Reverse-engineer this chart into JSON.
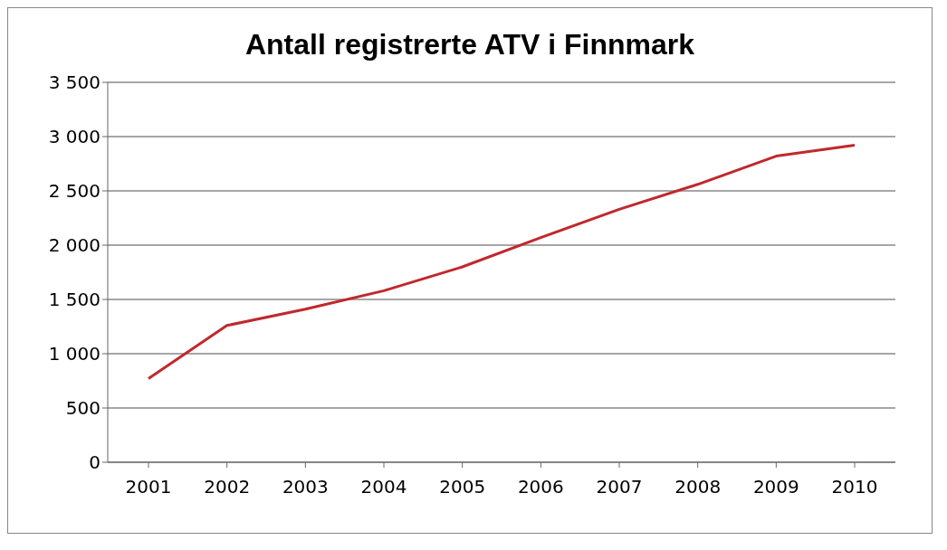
{
  "chart_data": {
    "type": "line",
    "title": "Antall registrerte ATV i Finnmark",
    "categories": [
      "2001",
      "2002",
      "2003",
      "2004",
      "2005",
      "2006",
      "2007",
      "2008",
      "2009",
      "2010"
    ],
    "series": [
      {
        "color": "#c0282d",
        "values": [
          770,
          1260,
          1410,
          1580,
          1800,
          2070,
          2330,
          2560,
          2820,
          2920
        ]
      }
    ],
    "ylim": [
      0,
      3500
    ],
    "yticks": [
      0,
      500,
      {
        "value": 1000,
        "label": "1 000"
      },
      {
        "value": 1500,
        "label": "1 500"
      },
      {
        "value": 2000,
        "label": "2 000"
      },
      {
        "value": 2500,
        "label": "2 500"
      },
      {
        "value": 3000,
        "label": "3 000"
      },
      {
        "value": 3500,
        "label": "3 500"
      }
    ],
    "grid": "y",
    "legend": false,
    "marker": "none",
    "line_style": "solid"
  }
}
